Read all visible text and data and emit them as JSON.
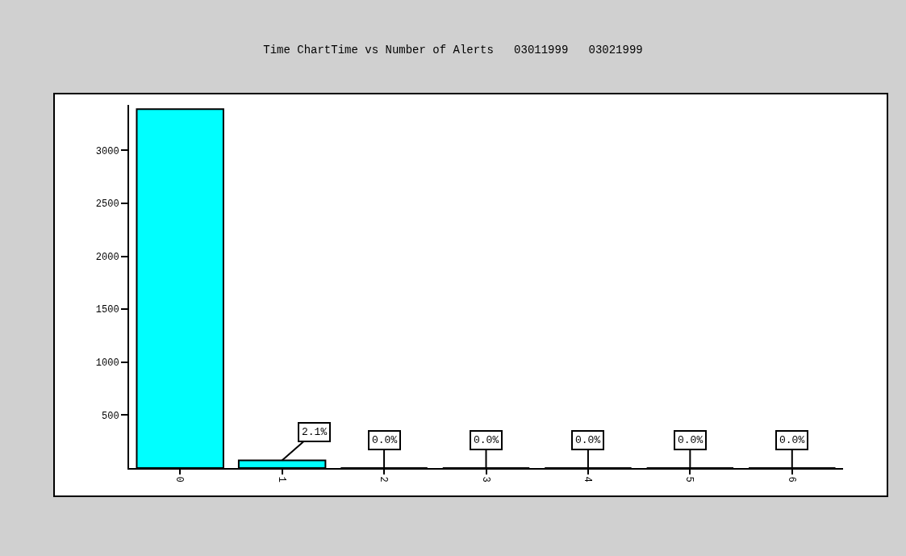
{
  "chart_data": {
    "type": "bar",
    "title": "Time ChartTime vs Number of Alerts   03011999   03021999",
    "categories": [
      "0",
      "1",
      "2",
      "3",
      "4",
      "5",
      "6"
    ],
    "values": [
      3390,
      73,
      0,
      0,
      0,
      0,
      0
    ],
    "annotations": [
      {
        "text": "2.1%",
        "x": "1",
        "y": 73
      },
      {
        "text": "0.0%",
        "x": "2",
        "y": 0
      },
      {
        "text": "0.0%",
        "x": "3",
        "y": 0
      },
      {
        "text": "0.0%",
        "x": "4",
        "y": 0
      },
      {
        "text": "0.0%",
        "x": "5",
        "y": 0
      },
      {
        "text": "0.0%",
        "x": "6",
        "y": 0
      }
    ],
    "color": "#00ffff",
    "ylim": [
      0,
      3430
    ],
    "yticks": [
      500,
      1000,
      1500,
      2000,
      2500,
      3000
    ],
    "grid": false,
    "legend": false
  }
}
